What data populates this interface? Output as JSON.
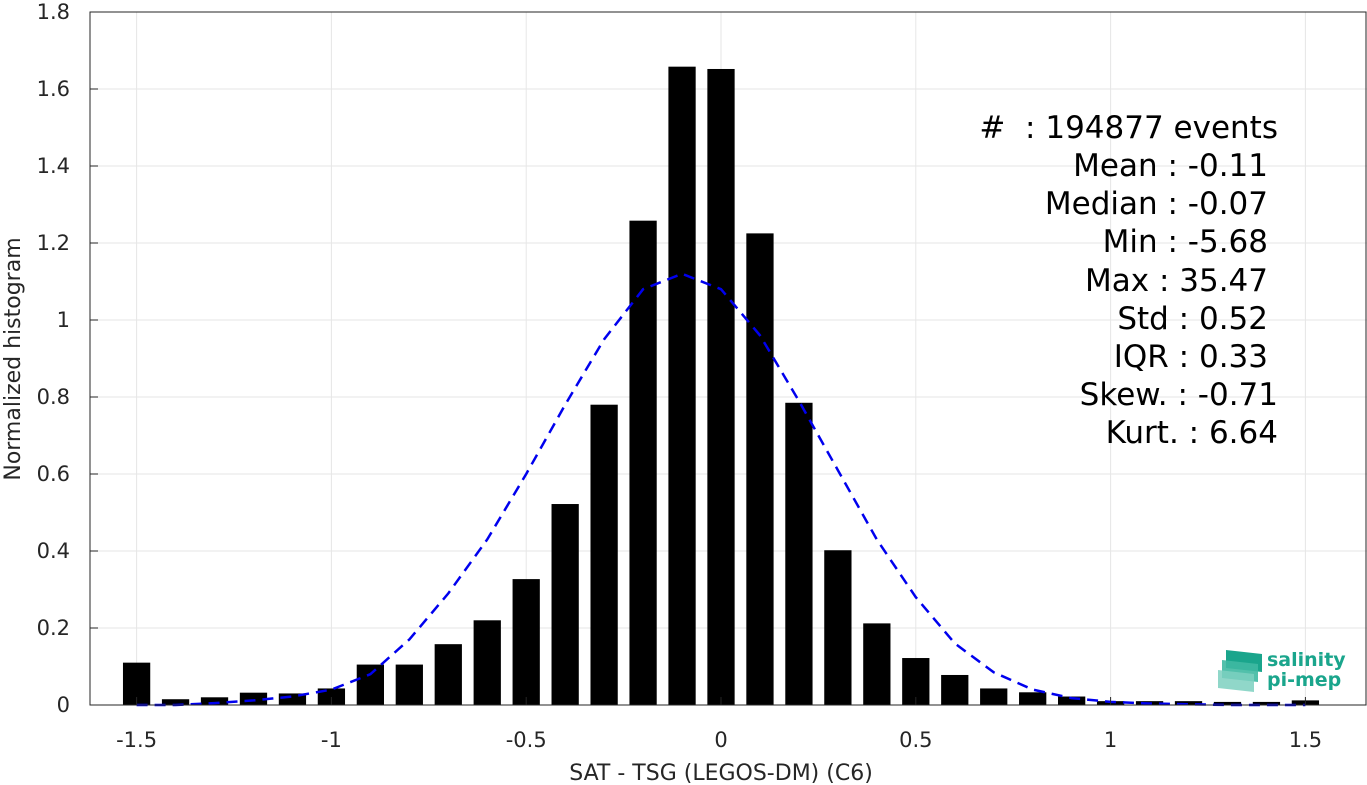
{
  "chart_data": {
    "type": "bar",
    "xlabel": "SAT - TSG (LEGOS-DM) (C6)",
    "ylabel": "Normalized histogram",
    "xlim": [
      -1.55,
      1.55
    ],
    "ylim": [
      0,
      1.8
    ],
    "grid": true,
    "xticks": [
      "-1.5",
      "-1",
      "-0.5",
      "0",
      "0.5",
      "1",
      "1.5"
    ],
    "yticks": [
      "0",
      "0.2",
      "0.4",
      "0.6",
      "0.8",
      "1",
      "1.2",
      "1.4",
      "1.6",
      "1.8"
    ],
    "bar_color": "#000000",
    "bins": [
      -1.5,
      -1.4,
      -1.3,
      -1.2,
      -1.1,
      -1.0,
      -0.9,
      -0.8,
      -0.7,
      -0.6,
      -0.5,
      -0.4,
      -0.3,
      -0.2,
      -0.1,
      0.0,
      0.1,
      0.2,
      0.3,
      0.4,
      0.5,
      0.6,
      0.7,
      0.8,
      0.9,
      1.0,
      1.1,
      1.2,
      1.3,
      1.4,
      1.5
    ],
    "values": [
      0.11,
      0.015,
      0.02,
      0.032,
      0.03,
      0.043,
      0.105,
      0.105,
      0.158,
      0.22,
      0.327,
      0.522,
      0.78,
      1.258,
      1.658,
      1.652,
      1.225,
      0.785,
      0.402,
      0.212,
      0.122,
      0.078,
      0.043,
      0.033,
      0.022,
      0.01,
      0.01,
      0.01,
      0.008,
      0.008,
      0.012
    ],
    "fit_curve": {
      "style": "dashed",
      "color": "#0000ee",
      "x": [
        -1.5,
        -1.4,
        -1.3,
        -1.2,
        -1.1,
        -1.0,
        -0.9,
        -0.8,
        -0.7,
        -0.6,
        -0.5,
        -0.4,
        -0.3,
        -0.2,
        -0.1,
        0.0,
        0.1,
        0.2,
        0.3,
        0.4,
        0.5,
        0.6,
        0.7,
        0.8,
        0.9,
        1.0,
        1.1,
        1.2,
        1.3,
        1.4,
        1.5
      ],
      "y": [
        0.0,
        0.0,
        0.005,
        0.012,
        0.022,
        0.04,
        0.08,
        0.17,
        0.29,
        0.43,
        0.6,
        0.78,
        0.95,
        1.08,
        1.12,
        1.08,
        0.96,
        0.79,
        0.61,
        0.43,
        0.28,
        0.16,
        0.085,
        0.04,
        0.018,
        0.008,
        0.004,
        0.002,
        0.0,
        0.0,
        0.0
      ]
    }
  },
  "stats": {
    "events": "#  : 194877 events",
    "mean": "Mean : -0.11",
    "median": "Median : -0.07",
    "min": "Min : -5.68",
    "max": "Max : 35.47",
    "std": "Std : 0.52",
    "iqr": "IQR : 0.33",
    "skew": "Skew. : -0.71",
    "kurt": "Kurt. : 6.64"
  },
  "logo": {
    "line1": "salinity",
    "line2": "pi-mep",
    "color": "#1aa58c"
  }
}
